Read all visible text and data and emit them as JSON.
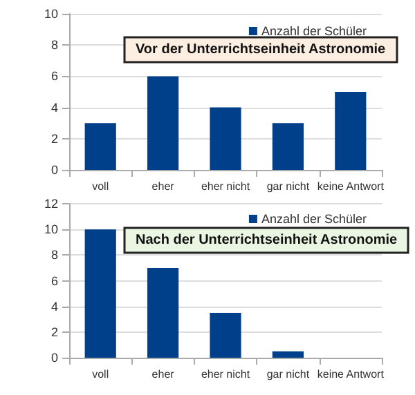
{
  "chart_data": [
    {
      "type": "bar",
      "title": "Vor der Unterrichtseinheit Astronomie",
      "categories": [
        "voll",
        "eher",
        "eher nicht",
        "gar nicht",
        "keine Antwort"
      ],
      "series": [
        {
          "name": "Anzahl der Schüler",
          "color": "#003f8a",
          "values": [
            3,
            6,
            4,
            3,
            5
          ]
        }
      ],
      "ylim": [
        0,
        10
      ],
      "yticks": [
        0,
        2,
        4,
        6,
        8,
        10
      ],
      "grid": "y",
      "legend": "top right"
    },
    {
      "type": "bar",
      "title": "Nach der Unterrichtseinheit Astronomie",
      "categories": [
        "voll",
        "eher",
        "eher nicht",
        "gar nicht",
        "keine Antwort"
      ],
      "series": [
        {
          "name": "Anzahl der Schüler",
          "color": "#003f8a",
          "values": [
            10,
            7,
            3.5,
            0.5,
            0
          ]
        }
      ],
      "ylim": [
        0,
        12
      ],
      "yticks": [
        0,
        2,
        4,
        6,
        8,
        10,
        12
      ],
      "grid": "y",
      "legend": "top right"
    }
  ]
}
